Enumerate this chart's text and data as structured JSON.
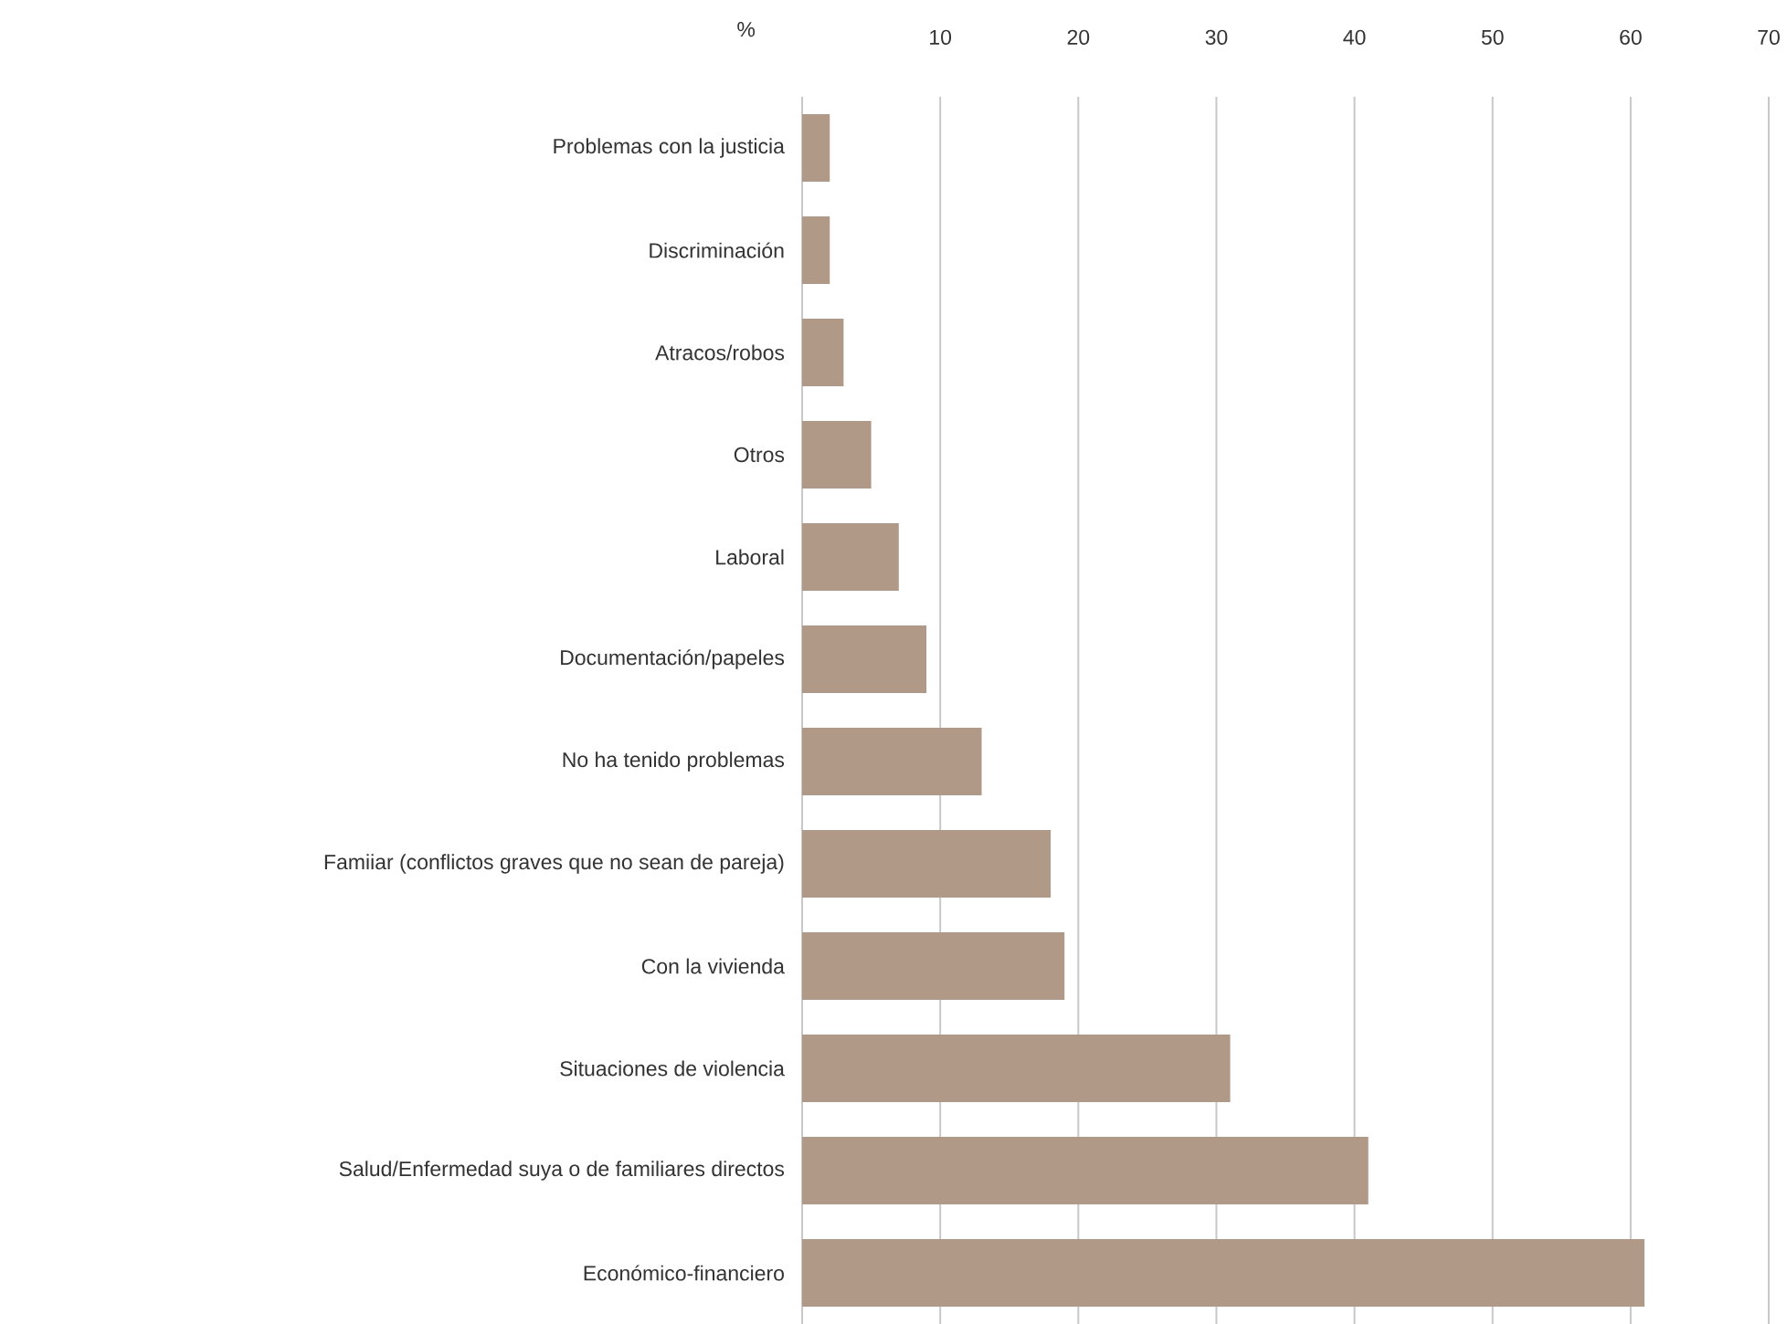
{
  "chart_data": {
    "type": "bar",
    "orientation": "horizontal",
    "xlabel": "%",
    "categories": [
      "Problemas con la justicia",
      "Discriminación",
      "Atracos/robos",
      "Otros",
      "Laboral",
      "Documentación/papeles",
      "No ha tenido problemas",
      "Famiiar (conflictos graves que no sean de pareja)",
      "Con la vivienda",
      "Situaciones de violencia",
      "Salud/Enfermedad suya o de familiares directos",
      "Económico-financiero"
    ],
    "values": [
      2,
      2,
      3,
      5,
      7,
      9,
      13,
      18,
      19,
      31,
      41,
      61
    ],
    "color": "#b09986",
    "xlim": [
      0,
      70
    ],
    "xticks": [
      {
        "value": 0,
        "label": null
      },
      10,
      20,
      30,
      40,
      50,
      60,
      70
    ],
    "grid": "x"
  }
}
